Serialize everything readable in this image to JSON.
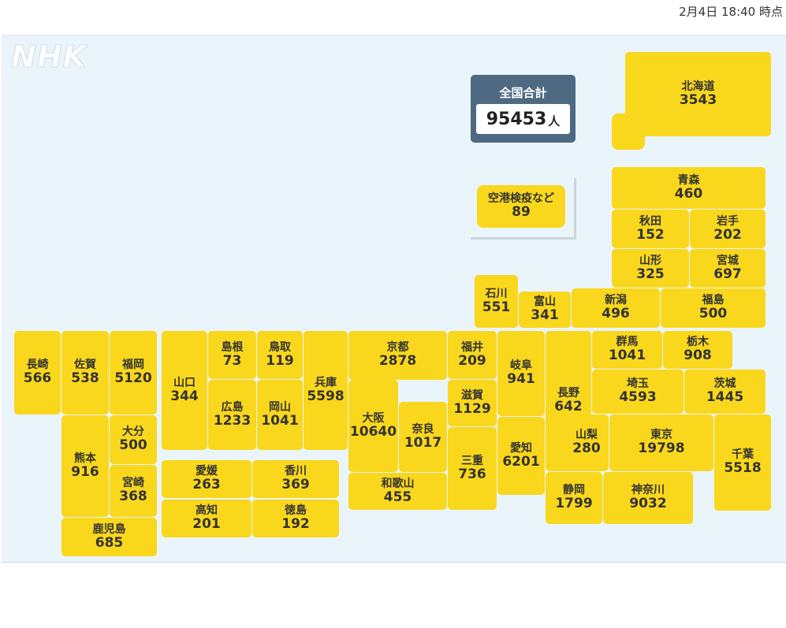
{
  "timestamp": "2月4日 18:40 時点",
  "logo_text": "NHK",
  "total": {
    "label": "全国合計",
    "value": "95453",
    "unit": "人"
  },
  "airport": {
    "name": "空港検疫など",
    "value": "89"
  },
  "prefectures": [
    {
      "id": "hokkaido",
      "name": "北海道",
      "value": "3543"
    },
    {
      "id": "aomori",
      "name": "青森",
      "value": "460"
    },
    {
      "id": "akita",
      "name": "秋田",
      "value": "152"
    },
    {
      "id": "iwate",
      "name": "岩手",
      "value": "202"
    },
    {
      "id": "yamagata",
      "name": "山形",
      "value": "325"
    },
    {
      "id": "miyagi",
      "name": "宮城",
      "value": "697"
    },
    {
      "id": "ishikawa",
      "name": "石川",
      "value": "551"
    },
    {
      "id": "toyama",
      "name": "富山",
      "value": "341"
    },
    {
      "id": "niigata",
      "name": "新潟",
      "value": "496"
    },
    {
      "id": "fukushima",
      "name": "福島",
      "value": "500"
    },
    {
      "id": "nagasaki",
      "name": "長崎",
      "value": "566"
    },
    {
      "id": "saga",
      "name": "佐賀",
      "value": "538"
    },
    {
      "id": "fukuoka",
      "name": "福岡",
      "value": "5120"
    },
    {
      "id": "yamaguchi",
      "name": "山口",
      "value": "344"
    },
    {
      "id": "shimane",
      "name": "島根",
      "value": "73"
    },
    {
      "id": "tottori",
      "name": "鳥取",
      "value": "119"
    },
    {
      "id": "hyogo",
      "name": "兵庫",
      "value": "5598"
    },
    {
      "id": "kyoto",
      "name": "京都",
      "value": "2878"
    },
    {
      "id": "fukui",
      "name": "福井",
      "value": "209"
    },
    {
      "id": "gifu",
      "name": "岐阜",
      "value": "941"
    },
    {
      "id": "nagano",
      "name": "長野",
      "value": "642"
    },
    {
      "id": "gunma",
      "name": "群馬",
      "value": "1041"
    },
    {
      "id": "tochigi",
      "name": "栃木",
      "value": "908"
    },
    {
      "id": "ibaraki",
      "name": "茨城",
      "value": "1445"
    },
    {
      "id": "saitama",
      "name": "埼玉",
      "value": "4593"
    },
    {
      "id": "hiroshima",
      "name": "広島",
      "value": "1233"
    },
    {
      "id": "okayama",
      "name": "岡山",
      "value": "1041"
    },
    {
      "id": "osaka",
      "name": "大阪",
      "value": "10640"
    },
    {
      "id": "nara",
      "name": "奈良",
      "value": "1017"
    },
    {
      "id": "shiga",
      "name": "滋賀",
      "value": "1129"
    },
    {
      "id": "mie",
      "name": "三重",
      "value": "736"
    },
    {
      "id": "aichi",
      "name": "愛知",
      "value": "6201"
    },
    {
      "id": "yamanashi",
      "name": "山梨",
      "value": "280"
    },
    {
      "id": "tokyo",
      "name": "東京",
      "value": "19798"
    },
    {
      "id": "chiba",
      "name": "千葉",
      "value": "5518"
    },
    {
      "id": "kumamoto",
      "name": "熊本",
      "value": "916"
    },
    {
      "id": "oita",
      "name": "大分",
      "value": "500"
    },
    {
      "id": "miyazaki",
      "name": "宮崎",
      "value": "368"
    },
    {
      "id": "kagoshima",
      "name": "鹿児島",
      "value": "685"
    },
    {
      "id": "ehime",
      "name": "愛媛",
      "value": "263"
    },
    {
      "id": "kagawa",
      "name": "香川",
      "value": "369"
    },
    {
      "id": "kochi",
      "name": "高知",
      "value": "201"
    },
    {
      "id": "tokushima",
      "name": "徳島",
      "value": "192"
    },
    {
      "id": "wakayama",
      "name": "和歌山",
      "value": "455"
    },
    {
      "id": "shizuoka",
      "name": "静岡",
      "value": "1799"
    },
    {
      "id": "kanagawa",
      "name": "神奈川",
      "value": "9032"
    }
  ],
  "colors": {
    "cell": "#f9d71c",
    "map_bg": "#eaf4fb",
    "total_box": "#4e6a82"
  }
}
